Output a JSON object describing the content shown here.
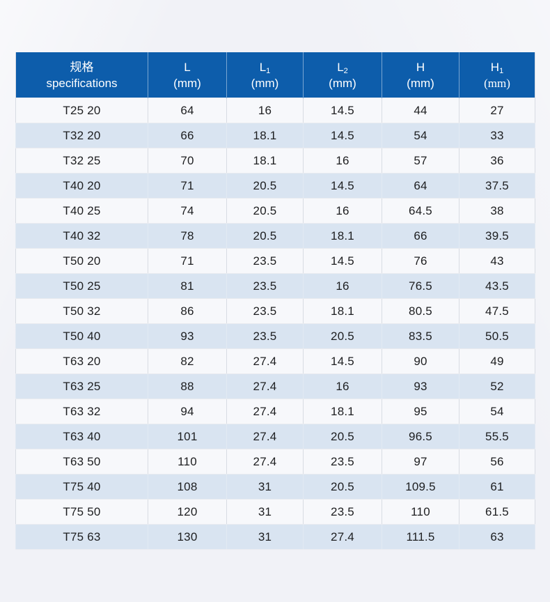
{
  "colors": {
    "header_blue": "#0d5dab",
    "row_light": "#f7f8fb",
    "row_blue": "#d9e4f1",
    "page_background": "#f1f2f7",
    "header_text": "#ffffff",
    "cell_text": "#1d1e20"
  },
  "table": {
    "columns": [
      {
        "line1": "规格",
        "line2": "specifications"
      },
      {
        "symbol": "L",
        "sub": "",
        "unit": "(mm)"
      },
      {
        "symbol": "L",
        "sub": "1",
        "unit": "(mm)"
      },
      {
        "symbol": "L",
        "sub": "2",
        "unit": "(mm)"
      },
      {
        "symbol": "H",
        "sub": "",
        "unit": "(mm)"
      },
      {
        "symbol": "H",
        "sub": "1",
        "unit": "(mm)"
      }
    ],
    "rows": [
      [
        "T25 20",
        "64",
        "16",
        "14.5",
        "44",
        "27"
      ],
      [
        "T32 20",
        "66",
        "18.1",
        "14.5",
        "54",
        "33"
      ],
      [
        "T32 25",
        "70",
        "18.1",
        "16",
        "57",
        "36"
      ],
      [
        "T40 20",
        "71",
        "20.5",
        "14.5",
        "64",
        "37.5"
      ],
      [
        "T40 25",
        "74",
        "20.5",
        "16",
        "64.5",
        "38"
      ],
      [
        "T40 32",
        "78",
        "20.5",
        "18.1",
        "66",
        "39.5"
      ],
      [
        "T50 20",
        "71",
        "23.5",
        "14.5",
        "76",
        "43"
      ],
      [
        "T50 25",
        "81",
        "23.5",
        "16",
        "76.5",
        "43.5"
      ],
      [
        "T50 32",
        "86",
        "23.5",
        "18.1",
        "80.5",
        "47.5"
      ],
      [
        "T50 40",
        "93",
        "23.5",
        "20.5",
        "83.5",
        "50.5"
      ],
      [
        "T63 20",
        "82",
        "27.4",
        "14.5",
        "90",
        "49"
      ],
      [
        "T63 25",
        "88",
        "27.4",
        "16",
        "93",
        "52"
      ],
      [
        "T63 32",
        "94",
        "27.4",
        "18.1",
        "95",
        "54"
      ],
      [
        "T63 40",
        "101",
        "27.4",
        "20.5",
        "96.5",
        "55.5"
      ],
      [
        "T63 50",
        "110",
        "27.4",
        "23.5",
        "97",
        "56"
      ],
      [
        "T75 40",
        "108",
        "31",
        "20.5",
        "109.5",
        "61"
      ],
      [
        "T75 50",
        "120",
        "31",
        "23.5",
        "110",
        "61.5"
      ],
      [
        "T75 63",
        "130",
        "31",
        "27.4",
        "111.5",
        "63"
      ]
    ]
  },
  "chart_data": {
    "type": "table",
    "title": "规格 specifications",
    "columns": [
      "规格 specifications",
      "L (mm)",
      "L1 (mm)",
      "L2 (mm)",
      "H (mm)",
      "H1 (mm)"
    ],
    "rows": [
      [
        "T25 20",
        64,
        16,
        14.5,
        44,
        27
      ],
      [
        "T32 20",
        66,
        18.1,
        14.5,
        54,
        33
      ],
      [
        "T32 25",
        70,
        18.1,
        16,
        57,
        36
      ],
      [
        "T40 20",
        71,
        20.5,
        14.5,
        64,
        37.5
      ],
      [
        "T40 25",
        74,
        20.5,
        16,
        64.5,
        38
      ],
      [
        "T40 32",
        78,
        20.5,
        18.1,
        66,
        39.5
      ],
      [
        "T50 20",
        71,
        23.5,
        14.5,
        76,
        43
      ],
      [
        "T50 25",
        81,
        23.5,
        16,
        76.5,
        43.5
      ],
      [
        "T50 32",
        86,
        23.5,
        18.1,
        80.5,
        47.5
      ],
      [
        "T50 40",
        93,
        23.5,
        20.5,
        83.5,
        50.5
      ],
      [
        "T63 20",
        82,
        27.4,
        14.5,
        90,
        49
      ],
      [
        "T63 25",
        88,
        27.4,
        16,
        93,
        52
      ],
      [
        "T63 32",
        94,
        27.4,
        18.1,
        95,
        54
      ],
      [
        "T63 40",
        101,
        27.4,
        20.5,
        96.5,
        55.5
      ],
      [
        "T63 50",
        110,
        27.4,
        23.5,
        97,
        56
      ],
      [
        "T75 40",
        108,
        31,
        20.5,
        109.5,
        61
      ],
      [
        "T75 50",
        120,
        31,
        23.5,
        110,
        61.5
      ],
      [
        "T75 63",
        130,
        31,
        27.4,
        111.5,
        63
      ]
    ]
  }
}
